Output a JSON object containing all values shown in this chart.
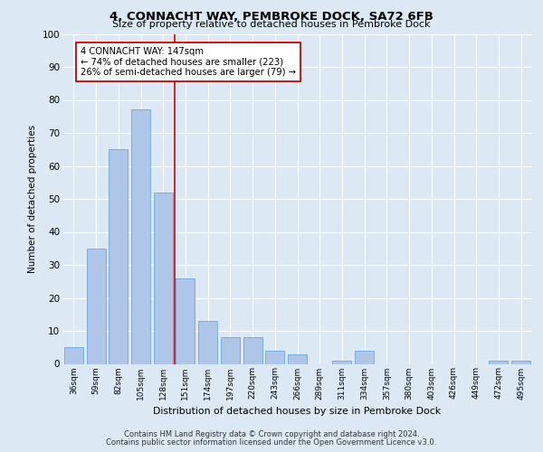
{
  "title_line1": "4, CONNACHT WAY, PEMBROKE DOCK, SA72 6FB",
  "title_line2": "Size of property relative to detached houses in Pembroke Dock",
  "xlabel": "Distribution of detached houses by size in Pembroke Dock",
  "ylabel": "Number of detached properties",
  "categories": [
    "36sqm",
    "59sqm",
    "82sqm",
    "105sqm",
    "128sqm",
    "151sqm",
    "174sqm",
    "197sqm",
    "220sqm",
    "243sqm",
    "266sqm",
    "289sqm",
    "311sqm",
    "334sqm",
    "357sqm",
    "380sqm",
    "403sqm",
    "426sqm",
    "449sqm",
    "472sqm",
    "495sqm"
  ],
  "values": [
    5,
    35,
    65,
    77,
    52,
    26,
    13,
    8,
    8,
    4,
    3,
    0,
    1,
    4,
    0,
    0,
    0,
    0,
    0,
    1,
    1
  ],
  "bar_color": "#aec6e8",
  "bar_edgecolor": "#5b9bd5",
  "bar_linewidth": 0.5,
  "background_color": "#dce9f5",
  "plot_bg_color": "#dce9f5",
  "grid_color": "#ffffff",
  "ylim": [
    0,
    100
  ],
  "yticks": [
    0,
    10,
    20,
    30,
    40,
    50,
    60,
    70,
    80,
    90,
    100
  ],
  "vline_x_index": 4.5,
  "vline_color": "#cc0000",
  "annotation_text": "4 CONNACHT WAY: 147sqm\n← 74% of detached houses are smaller (223)\n26% of semi-detached houses are larger (79) →",
  "annotation_box_edgecolor": "#cc0000",
  "annotation_box_facecolor": "#ffffff",
  "footer_line1": "Contains HM Land Registry data © Crown copyright and database right 2024.",
  "footer_line2": "Contains public sector information licensed under the Open Government Licence v3.0."
}
